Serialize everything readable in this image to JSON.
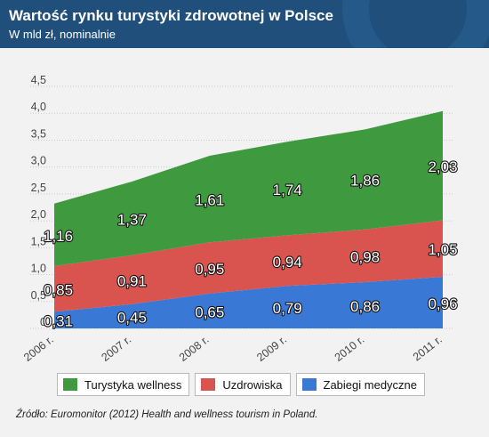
{
  "header": {
    "title": "Wartość rynku turystyki zdrowotnej w Polsce",
    "subtitle": "W mld zł, nominalnie"
  },
  "chart_data": {
    "type": "area",
    "stacked": true,
    "x": [
      "2006 r.",
      "2007 r.",
      "2008 r.",
      "2009 r.",
      "2010 r.",
      "2011 r."
    ],
    "series": [
      {
        "name": "Zabiegi medyczne",
        "values": [
          0.31,
          0.45,
          0.65,
          0.79,
          0.86,
          0.96
        ],
        "labels": [
          "0,31",
          "0,45",
          "0,65",
          "0,79",
          "0,86",
          "0,96"
        ],
        "color": "#3a78d6"
      },
      {
        "name": "Uzdrowiska",
        "values": [
          0.85,
          0.91,
          0.95,
          0.94,
          0.98,
          1.05
        ],
        "labels": [
          "0,85",
          "0,91",
          "0,95",
          "0,94",
          "0,98",
          "1,05"
        ],
        "color": "#d9534f"
      },
      {
        "name": "Turystyka wellness",
        "values": [
          1.16,
          1.37,
          1.61,
          1.74,
          1.86,
          2.03
        ],
        "labels": [
          "1,16",
          "1,37",
          "1,61",
          "1,74",
          "1,86",
          "2,03"
        ],
        "color": "#3f9a3f"
      }
    ],
    "ylim": [
      0,
      4.5
    ],
    "yticks": [
      "0",
      "0,5",
      "1,0",
      "1,5",
      "2,0",
      "2,5",
      "3,0",
      "3,5",
      "4,0",
      "4,5"
    ],
    "grid": true,
    "legend_position": "bottom"
  },
  "legend": [
    {
      "label": "Turystyka wellness",
      "color": "#3f9a3f"
    },
    {
      "label": "Uzdrowiska",
      "color": "#d9534f"
    },
    {
      "label": "Zabiegi medyczne",
      "color": "#3a78d6"
    }
  ],
  "source": "Źródło: Euromonitor (2012) Health and wellness tourism in Poland."
}
